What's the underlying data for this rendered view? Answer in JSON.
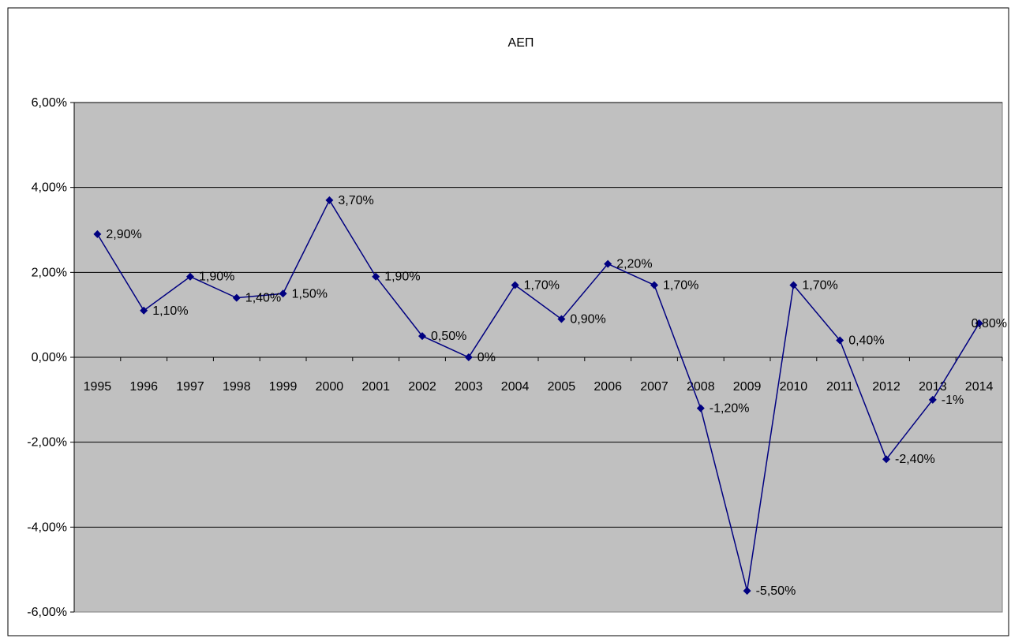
{
  "chart_data": {
    "type": "line",
    "title": "ΑΕΠ",
    "xlabel": "",
    "ylabel": "",
    "categories": [
      "1995",
      "1996",
      "1997",
      "1998",
      "1999",
      "2000",
      "2001",
      "2002",
      "2003",
      "2004",
      "2005",
      "2006",
      "2007",
      "2008",
      "2009",
      "2010",
      "2011",
      "2012",
      "2013",
      "2014"
    ],
    "series": [
      {
        "values": [
          2.9,
          1.1,
          1.9,
          1.4,
          1.5,
          3.7,
          1.9,
          0.5,
          0,
          1.7,
          0.9,
          2.2,
          1.7,
          -1.2,
          -5.5,
          1.7,
          0.4,
          -2.4,
          -1,
          0.8
        ],
        "data_labels": [
          "2,90%",
          "1,10%",
          "1,90%",
          "1,40%",
          "1,50%",
          "3,70%",
          "1,90%",
          "0,50%",
          "0%",
          "1,70%",
          "0,90%",
          "2,20%",
          "1,70%",
          "-1,20%",
          "-5,50%",
          "1,70%",
          "0,40%",
          "-2,40%",
          "-1%",
          "0,80%"
        ],
        "color": "#000080"
      }
    ],
    "ylim": [
      -6,
      6
    ],
    "yticks": [
      6,
      4,
      2,
      0,
      -2,
      -4,
      -6
    ],
    "ytick_labels": [
      "6,00%",
      "4,00%",
      "2,00%",
      "0,00%",
      "-2,00%",
      "-4,00%",
      "-6,00%"
    ],
    "grid": true,
    "plot_background": "#c0c0c0",
    "legend": "none"
  }
}
